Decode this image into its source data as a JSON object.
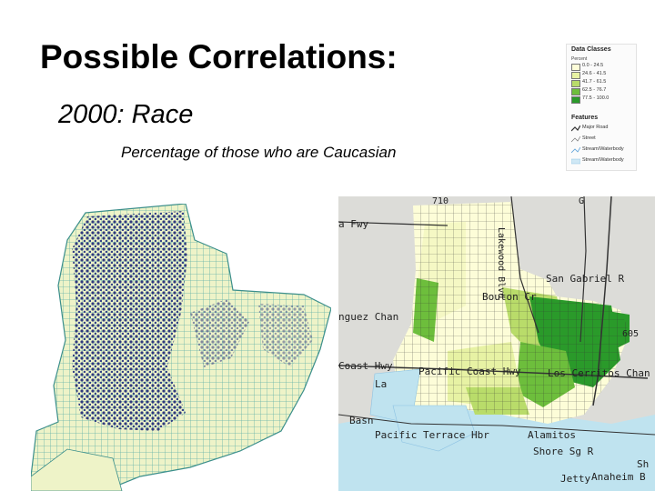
{
  "slide": {
    "title": "Possible Correlations:",
    "subtitle": "2000: Race",
    "caption": "Percentage of those who are Caucasian"
  },
  "legend": {
    "heading": "Data Classes",
    "subheading": "Percent",
    "classes": [
      {
        "label": "0.0 - 24.5",
        "color": "#fdfdd8"
      },
      {
        "label": "24.6 - 41.5",
        "color": "#e7f2a4"
      },
      {
        "label": "41.7 - 61.5",
        "color": "#b9dc6a"
      },
      {
        "label": "62.5 - 76.7",
        "color": "#6dbe3c"
      },
      {
        "label": "77.5 - 100.0",
        "color": "#2a9a2a"
      }
    ],
    "features_heading": "Features",
    "features": [
      {
        "label": "Major Road",
        "icon": "major-road-icon"
      },
      {
        "label": "Street",
        "icon": "street-icon"
      },
      {
        "label": "Stream/Waterbody",
        "icon": "stream-icon"
      },
      {
        "label": "Stream/Waterbody",
        "icon": "waterbody-icon"
      }
    ]
  },
  "map_labels": {
    "fwy": "a Fwy",
    "lakewood": "Lakewood Blvd",
    "route_710": "710",
    "san_gabriel": "San Gabriel R",
    "bouton": "Bouton Cr",
    "dominguez": "nguez Chan",
    "coast_hwy": "Coast Hwy",
    "pacific_coast": "Pacific Coast Hwy",
    "los_cerritos": "Los Cerritos Chan",
    "route_605": "605",
    "basin": "Basn",
    "pacific_terrace": "Pacific Terrace Hbr",
    "shore": "Shore Sg R",
    "anaheim": "Anaheim B",
    "jetty": "Jetty",
    "sh": "Sh",
    "alamitos": "Alamitos",
    "la": "La",
    "g": "G"
  }
}
